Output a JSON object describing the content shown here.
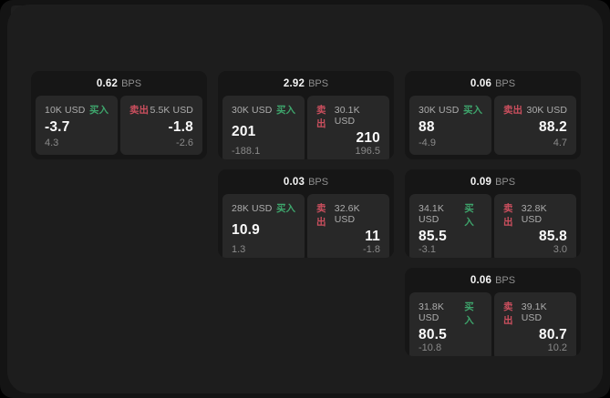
{
  "labels": {
    "bps_suffix": "BPS",
    "buy": "买入",
    "sell": "卖出"
  },
  "colors": {
    "background": "#141414",
    "panel": "#1d1d1d",
    "card": "#161616",
    "subcard": "#282828",
    "buy_green": "#3ea56c",
    "sell_red": "#cb4f5e",
    "value_white": "#fafafa",
    "muted_gray": "#8a8a8a"
  },
  "cards": [
    {
      "row": 1,
      "col": 1,
      "bps": "0.62",
      "buy": {
        "amount": "10K USD",
        "value": "-3.7",
        "delta": "4.3"
      },
      "sell": {
        "amount": "5.5K USD",
        "value": "-1.8",
        "delta": "-2.6"
      }
    },
    {
      "row": 1,
      "col": 2,
      "bps": "2.92",
      "buy": {
        "amount": "30K USD",
        "value": "201",
        "delta": "-188.1"
      },
      "sell": {
        "amount": "30.1K USD",
        "value": "210",
        "delta": "196.5"
      }
    },
    {
      "row": 1,
      "col": 3,
      "bps": "0.06",
      "buy": {
        "amount": "30K USD",
        "value": "88",
        "delta": "-4.9"
      },
      "sell": {
        "amount": "30K USD",
        "value": "88.2",
        "delta": "4.7"
      }
    },
    {
      "row": 2,
      "col": 2,
      "bps": "0.03",
      "buy": {
        "amount": "28K USD",
        "value": "10.9",
        "delta": "1.3"
      },
      "sell": {
        "amount": "32.6K USD",
        "value": "11",
        "delta": "-1.8"
      }
    },
    {
      "row": 2,
      "col": 3,
      "bps": "0.09",
      "buy": {
        "amount": "34.1K USD",
        "value": "85.5",
        "delta": "-3.1"
      },
      "sell": {
        "amount": "32.8K USD",
        "value": "85.8",
        "delta": "3.0"
      }
    },
    {
      "row": 3,
      "col": 3,
      "bps": "0.06",
      "buy": {
        "amount": "31.8K USD",
        "value": "80.5",
        "delta": "-10.8"
      },
      "sell": {
        "amount": "39.1K USD",
        "value": "80.7",
        "delta": "10.2"
      }
    }
  ]
}
